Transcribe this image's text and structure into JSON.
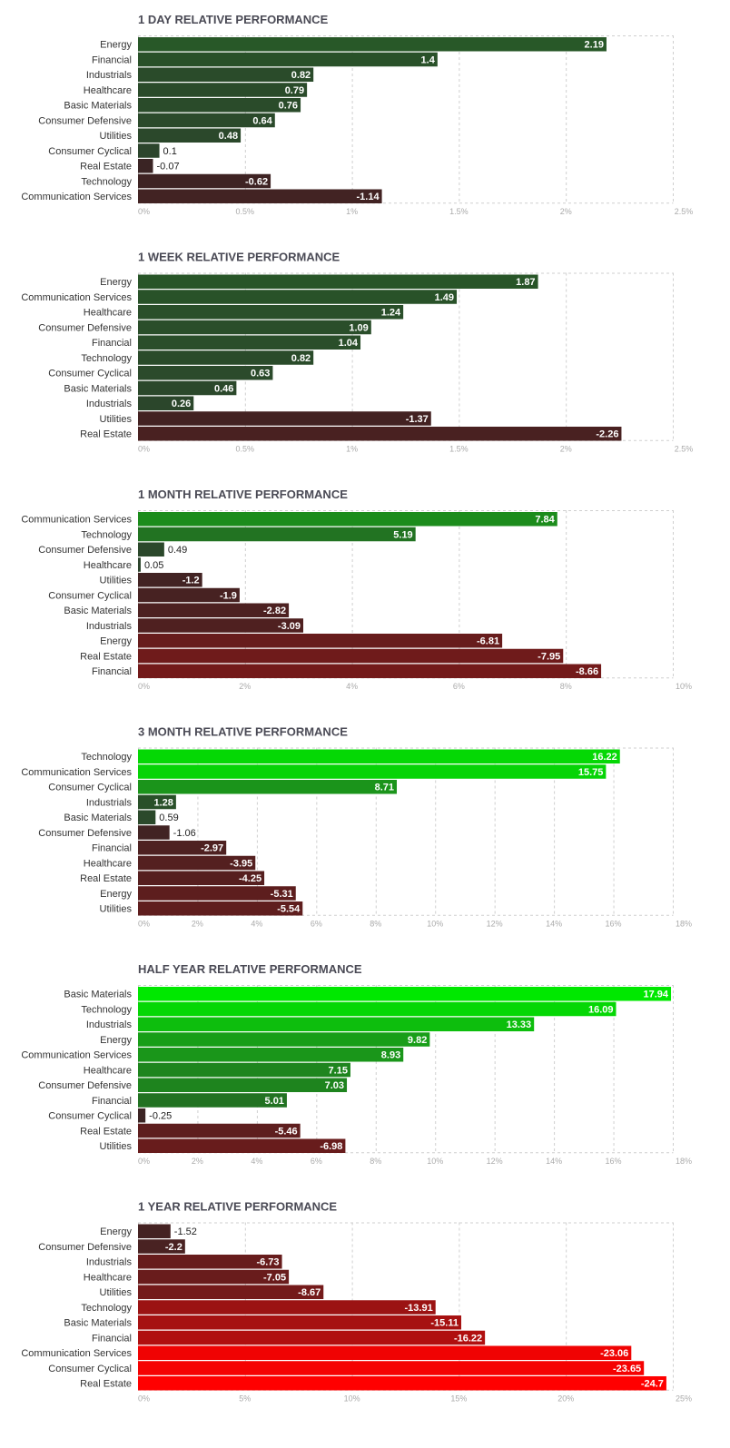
{
  "chart_data": [
    {
      "type": "bar",
      "orientation": "horizontal",
      "title": "1 DAY RELATIVE PERFORMANCE",
      "categories": [
        "Energy",
        "Financial",
        "Industrials",
        "Healthcare",
        "Basic Materials",
        "Consumer Defensive",
        "Utilities",
        "Consumer Cyclical",
        "Real Estate",
        "Technology",
        "Communication Services"
      ],
      "values": [
        2.19,
        1.4,
        0.82,
        0.79,
        0.76,
        0.64,
        0.48,
        0.1,
        -0.07,
        -0.62,
        -1.14
      ],
      "value_labels": [
        "2.19",
        "1.4",
        "0.82",
        "0.79",
        "0.76",
        "0.64",
        "0.48",
        "0.1",
        "-0.07",
        "-0.62",
        "-1.14"
      ],
      "xlim": [
        0,
        2.5
      ],
      "ticks": [
        0,
        0.5,
        1,
        1.5,
        2,
        2.5
      ],
      "tick_labels": [
        "0%",
        "0.5%",
        "1%",
        "1.5%",
        "2%",
        "2.5%"
      ],
      "bar_length": "absolute value",
      "grid": true
    },
    {
      "type": "bar",
      "orientation": "horizontal",
      "title": "1 WEEK RELATIVE PERFORMANCE",
      "categories": [
        "Energy",
        "Communication Services",
        "Healthcare",
        "Consumer Defensive",
        "Financial",
        "Technology",
        "Consumer Cyclical",
        "Basic Materials",
        "Industrials",
        "Utilities",
        "Real Estate"
      ],
      "values": [
        1.87,
        1.49,
        1.24,
        1.09,
        1.04,
        0.82,
        0.63,
        0.46,
        0.26,
        -1.37,
        -2.26
      ],
      "value_labels": [
        "1.87",
        "1.49",
        "1.24",
        "1.09",
        "1.04",
        "0.82",
        "0.63",
        "0.46",
        "0.26",
        "-1.37",
        "-2.26"
      ],
      "xlim": [
        0,
        2.5
      ],
      "ticks": [
        0,
        0.5,
        1,
        1.5,
        2,
        2.5
      ],
      "tick_labels": [
        "0%",
        "0.5%",
        "1%",
        "1.5%",
        "2%",
        "2.5%"
      ],
      "bar_length": "absolute value",
      "grid": true
    },
    {
      "type": "bar",
      "orientation": "horizontal",
      "title": "1 MONTH RELATIVE PERFORMANCE",
      "categories": [
        "Communication Services",
        "Technology",
        "Consumer Defensive",
        "Healthcare",
        "Utilities",
        "Consumer Cyclical",
        "Basic Materials",
        "Industrials",
        "Energy",
        "Real Estate",
        "Financial"
      ],
      "values": [
        7.84,
        5.19,
        0.49,
        0.05,
        -1.2,
        -1.9,
        -2.82,
        -3.09,
        -6.81,
        -7.95,
        -8.66
      ],
      "value_labels": [
        "7.84",
        "5.19",
        "0.49",
        "0.05",
        "-1.2",
        "-1.9",
        "-2.82",
        "-3.09",
        "-6.81",
        "-7.95",
        "-8.66"
      ],
      "xlim": [
        0,
        10
      ],
      "ticks": [
        0,
        2,
        4,
        6,
        8,
        10
      ],
      "tick_labels": [
        "0%",
        "2%",
        "4%",
        "6%",
        "8%",
        "10%"
      ],
      "bar_length": "absolute value",
      "grid": true
    },
    {
      "type": "bar",
      "orientation": "horizontal",
      "title": "3 MONTH RELATIVE PERFORMANCE",
      "categories": [
        "Technology",
        "Communication Services",
        "Consumer Cyclical",
        "Industrials",
        "Basic Materials",
        "Consumer Defensive",
        "Financial",
        "Healthcare",
        "Real Estate",
        "Energy",
        "Utilities"
      ],
      "values": [
        16.22,
        15.75,
        8.71,
        1.28,
        0.59,
        -1.06,
        -2.97,
        -3.95,
        -4.25,
        -5.31,
        -5.54
      ],
      "value_labels": [
        "16.22",
        "15.75",
        "8.71",
        "1.28",
        "0.59",
        "-1.06",
        "-2.97",
        "-3.95",
        "-4.25",
        "-5.31",
        "-5.54"
      ],
      "xlim": [
        0,
        18
      ],
      "ticks": [
        0,
        2,
        4,
        6,
        8,
        10,
        12,
        14,
        16,
        18
      ],
      "tick_labels": [
        "0%",
        "2%",
        "4%",
        "6%",
        "8%",
        "10%",
        "12%",
        "14%",
        "16%",
        "18%"
      ],
      "bar_length": "absolute value",
      "grid": true
    },
    {
      "type": "bar",
      "orientation": "horizontal",
      "title": "HALF YEAR RELATIVE PERFORMANCE",
      "categories": [
        "Basic Materials",
        "Technology",
        "Industrials",
        "Energy",
        "Communication Services",
        "Healthcare",
        "Consumer Defensive",
        "Financial",
        "Consumer Cyclical",
        "Real Estate",
        "Utilities"
      ],
      "values": [
        17.94,
        16.09,
        13.33,
        9.82,
        8.93,
        7.15,
        7.03,
        5.01,
        -0.25,
        -5.46,
        -6.98
      ],
      "value_labels": [
        "17.94",
        "16.09",
        "13.33",
        "9.82",
        "8.93",
        "7.15",
        "7.03",
        "5.01",
        "-0.25",
        "-5.46",
        "-6.98"
      ],
      "xlim": [
        0,
        18
      ],
      "ticks": [
        0,
        2,
        4,
        6,
        8,
        10,
        12,
        14,
        16,
        18
      ],
      "tick_labels": [
        "0%",
        "2%",
        "4%",
        "6%",
        "8%",
        "10%",
        "12%",
        "14%",
        "16%",
        "18%"
      ],
      "bar_length": "absolute value",
      "grid": true
    },
    {
      "type": "bar",
      "orientation": "horizontal",
      "title": "1 YEAR RELATIVE PERFORMANCE",
      "categories": [
        "Energy",
        "Consumer Defensive",
        "Industrials",
        "Healthcare",
        "Utilities",
        "Technology",
        "Basic Materials",
        "Financial",
        "Communication Services",
        "Consumer Cyclical",
        "Real Estate"
      ],
      "values": [
        -1.52,
        -2.2,
        -6.73,
        -7.05,
        -8.67,
        -13.91,
        -15.11,
        -16.22,
        -23.06,
        -23.65,
        -24.7
      ],
      "value_labels": [
        "-1.52",
        "-2.2",
        "-6.73",
        "-7.05",
        "-8.67",
        "-13.91",
        "-15.11",
        "-16.22",
        "-23.06",
        "-23.65",
        "-24.7"
      ],
      "xlim": [
        0,
        25
      ],
      "ticks": [
        0,
        5,
        10,
        15,
        20,
        25
      ],
      "tick_labels": [
        "0%",
        "5%",
        "10%",
        "15%",
        "20%",
        "25%"
      ],
      "bar_length": "absolute value",
      "grid": true
    }
  ],
  "colors": {
    "positive_strong": "#00e400",
    "positive_mid": "#1a9a1a",
    "positive_weak": "#2c4a2c",
    "negative_weak": "#3a2323",
    "negative_mid": "#8a1a1a",
    "negative_strong": "#ff0000",
    "grid": "#cfcfcf",
    "title": "#4a4a55",
    "tick": "#aaaaaa"
  }
}
